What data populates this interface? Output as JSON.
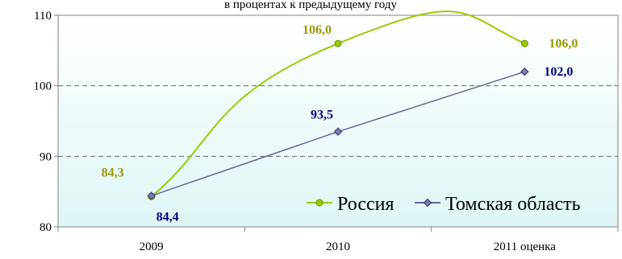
{
  "header_fragment": "в процентах к предыдущему году",
  "chart_data": {
    "type": "line",
    "title": "",
    "xlabel": "",
    "ylabel": "",
    "categories": [
      "2009",
      "2010",
      "2011 оценка"
    ],
    "ylim": [
      80,
      110
    ],
    "yticks": [
      80,
      90,
      100,
      110
    ],
    "grid": "horizontal dashed at 90 and 100",
    "legend_position": "bottom-right",
    "background_gradient": [
      "#ffffff",
      "#dff6f6"
    ],
    "series": [
      {
        "name": "Россия",
        "values": [
          84.3,
          106.0,
          106.0
        ],
        "labels": [
          "84,3",
          "106,0",
          "106,0"
        ],
        "color": "#99cc00",
        "label_color": "#999900",
        "marker": "circle",
        "smooth": true
      },
      {
        "name": "Томская область",
        "values": [
          84.4,
          93.5,
          102.0
        ],
        "labels": [
          "84,4",
          "93,5",
          "102,0"
        ],
        "color": "#666699",
        "label_color": "#000080",
        "marker": "diamond",
        "smooth": false
      }
    ]
  }
}
